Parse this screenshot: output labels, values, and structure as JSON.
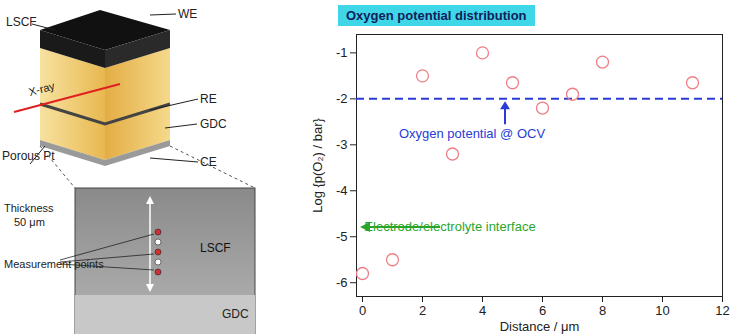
{
  "diagram": {
    "cell_labels": {
      "top_layer": "LSCF",
      "working_electrode": "WE",
      "beam": "X-ray",
      "reference_electrode": "RE",
      "electrolyte": "GDC",
      "bottom_layer": "Porous Pt",
      "counter_electrode": "CE"
    },
    "micrograph": {
      "thickness_title": "Thickness",
      "thickness_value": "50 μm",
      "electrode": "LSCF",
      "points_label": "Measurement points",
      "substrate": "GDC"
    }
  },
  "chart_data": {
    "type": "scatter",
    "title": "Oxygen potential distribution",
    "x_label": "Distance / μm",
    "y_label": "Log {p(O₂) / bar}",
    "x": [
      0,
      1,
      2,
      3,
      4,
      5,
      6,
      7,
      8,
      11
    ],
    "values": [
      -5.8,
      -5.5,
      -1.5,
      -3.2,
      -1.0,
      -1.65,
      -2.2,
      -1.9,
      -1.2,
      -1.65
    ],
    "color": "#ee7f86",
    "marker": "circle-open",
    "xlim": [
      -0.2,
      12
    ],
    "ylim": [
      -6.3,
      -0.6
    ],
    "xticks": [
      0,
      2,
      4,
      6,
      8,
      10,
      12
    ],
    "yticks": [
      -1,
      -2,
      -3,
      -4,
      -5,
      -6
    ],
    "grid": false,
    "reference_line": {
      "value": -2,
      "label": "Oxygen potential @ OCV",
      "color": "#2a3bd8",
      "line_style": "dashed"
    },
    "annotations": [
      {
        "text": "Electrode/electrolyte interface",
        "y": -4.8,
        "color": "#2aa52a"
      }
    ]
  }
}
